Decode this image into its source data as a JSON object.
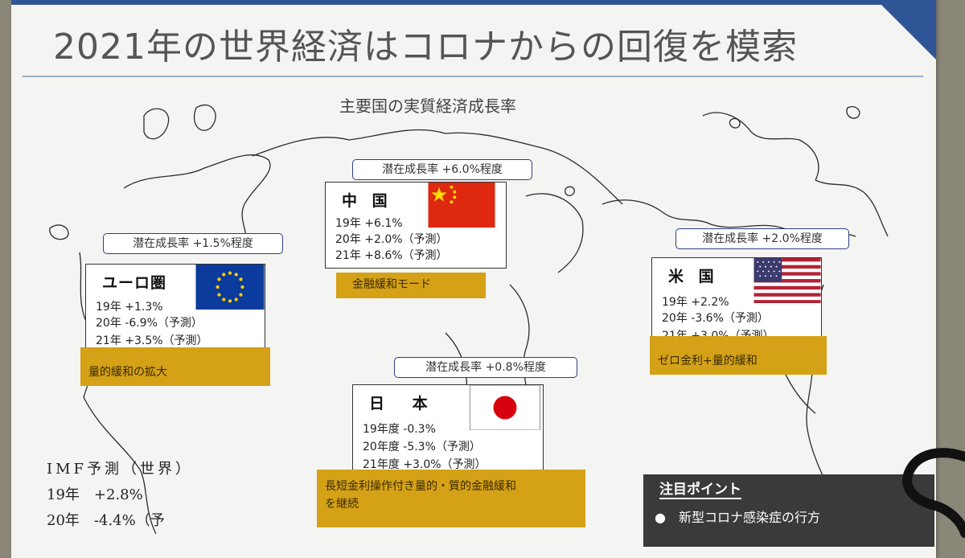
{
  "title": "2021年の世界経済はコロナからの回復を模索",
  "subtitle": "主要国の実質経済成長率",
  "countries": {
    "china": {
      "name": "中 国",
      "potential": "潜在成長率 +6.0%程度",
      "rates": [
        "19年 +6.1%",
        "20年 +2.0%（予測）",
        "21年 +8.6%（予測）"
      ],
      "policy": "金融緩和モード",
      "flag_icon": "china-flag-icon"
    },
    "euro": {
      "name": "ユーロ圏",
      "potential": "潜在成長率 +1.5%程度",
      "rates": [
        "19年 +1.3%",
        "20年 -6.9%（予測）",
        "21年 +3.5%（予測）"
      ],
      "policy": "量的緩和の拡大",
      "flag_icon": "eu-flag-icon"
    },
    "usa": {
      "name": "米 国",
      "potential": "潜在成長率 +2.0%程度",
      "rates": [
        "19年 +2.2%",
        "20年 -3.6%（予測）",
        "21年 +3.0%（予測）"
      ],
      "policy": "ゼロ金利+量的緩和",
      "flag_icon": "us-flag-icon"
    },
    "japan": {
      "name": "日 本",
      "potential": "潜在成長率 +0.8%程度",
      "rates": [
        "19年度 -0.3%",
        "20年度 -5.3%（予測）",
        "21年度 +3.0%（予測）"
      ],
      "policy_lines": [
        "長短金利操作付き量的・質的金融緩和",
        "を継続"
      ],
      "flag_icon": "japan-flag-icon"
    }
  },
  "imf": {
    "heading": "IMF予測（世界）",
    "rows": [
      "19年　+2.8%",
      "20年　-4.4%（予"
    ]
  },
  "note": {
    "title": "注目ポイント",
    "items": [
      "●　新型コロナ感染症の行方"
    ]
  },
  "colors": {
    "accent_band": "#2f5597",
    "policy_bg": "#d4a117",
    "note_bg": "#3a3a3a"
  }
}
